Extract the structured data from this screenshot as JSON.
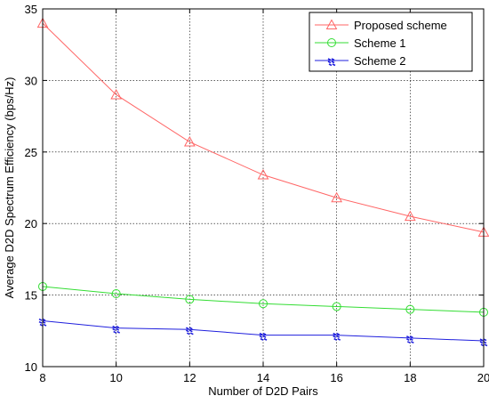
{
  "chart_data": {
    "type": "line",
    "xlabel": "Number of D2D Pairs",
    "ylabel": "Average D2D Spectrum Efficiency (bps/Hz)",
    "xlim": [
      8,
      20
    ],
    "ylim": [
      10,
      35
    ],
    "xticks": [
      8,
      10,
      12,
      14,
      16,
      18,
      20
    ],
    "yticks": [
      10,
      15,
      20,
      25,
      30,
      35
    ],
    "grid": true,
    "legend_position": "top-right",
    "x": [
      8,
      10,
      12,
      14,
      16,
      18,
      20
    ],
    "series": [
      {
        "name": "Proposed scheme",
        "color": "#ff6666",
        "marker": "triangle",
        "values": [
          34.0,
          29.0,
          25.7,
          23.4,
          21.8,
          20.5,
          19.4
        ]
      },
      {
        "name": "Scheme 1",
        "color": "#33dd33",
        "marker": "circle",
        "values": [
          15.6,
          15.1,
          14.7,
          14.4,
          14.2,
          14.0,
          13.8
        ]
      },
      {
        "name": "Scheme 2",
        "color": "#1f1fdd",
        "marker": "hatch",
        "values": [
          13.2,
          12.7,
          12.6,
          12.2,
          12.2,
          12.0,
          11.8
        ]
      }
    ]
  }
}
